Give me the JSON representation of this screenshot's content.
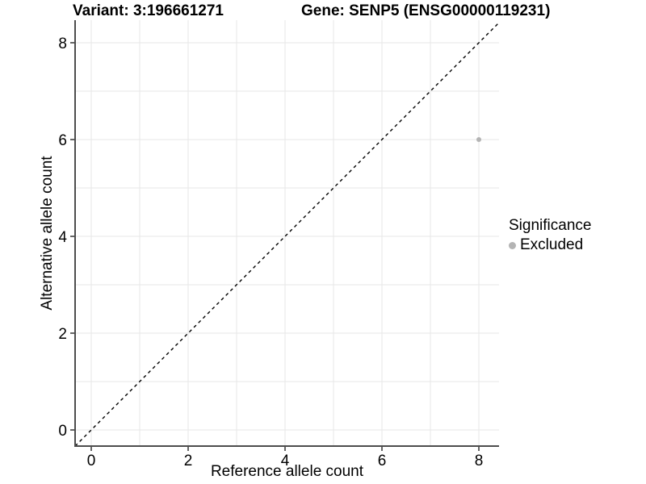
{
  "chart_data": {
    "type": "scatter",
    "title_left": "Variant: 3:196661271",
    "title_right": "Gene: SENP5 (ENSG00000119231)",
    "xlabel": "Reference allele count",
    "ylabel": "Alternative allele count",
    "xlim": [
      -0.33,
      8.43
    ],
    "ylim": [
      -0.33,
      8.8
    ],
    "x_ticks": [
      0,
      2,
      4,
      6,
      8
    ],
    "y_ticks": [
      0,
      2,
      4,
      6,
      8
    ],
    "grid": {
      "show": true,
      "interval": 1,
      "color": "#e7e7e7"
    },
    "reference_line": {
      "type": "identity y=x",
      "style": "dashed",
      "color": "#000000"
    },
    "series": [
      {
        "name": "Excluded",
        "color": "#b4b4b4",
        "points": [
          {
            "x": 8,
            "y": 6
          }
        ]
      }
    ],
    "legend_position": "right"
  },
  "legend": {
    "title": "Significance",
    "items": [
      {
        "label": "Excluded",
        "color": "#b4b4b4"
      }
    ]
  },
  "colors": {
    "background": "#ffffff",
    "axis_line": "#4d4d4d",
    "tick_mark": "#333333",
    "tick_label": "#000000",
    "gridline": "#e7e7e7",
    "point": "#b4b4b4",
    "reference_line": "#000000"
  }
}
